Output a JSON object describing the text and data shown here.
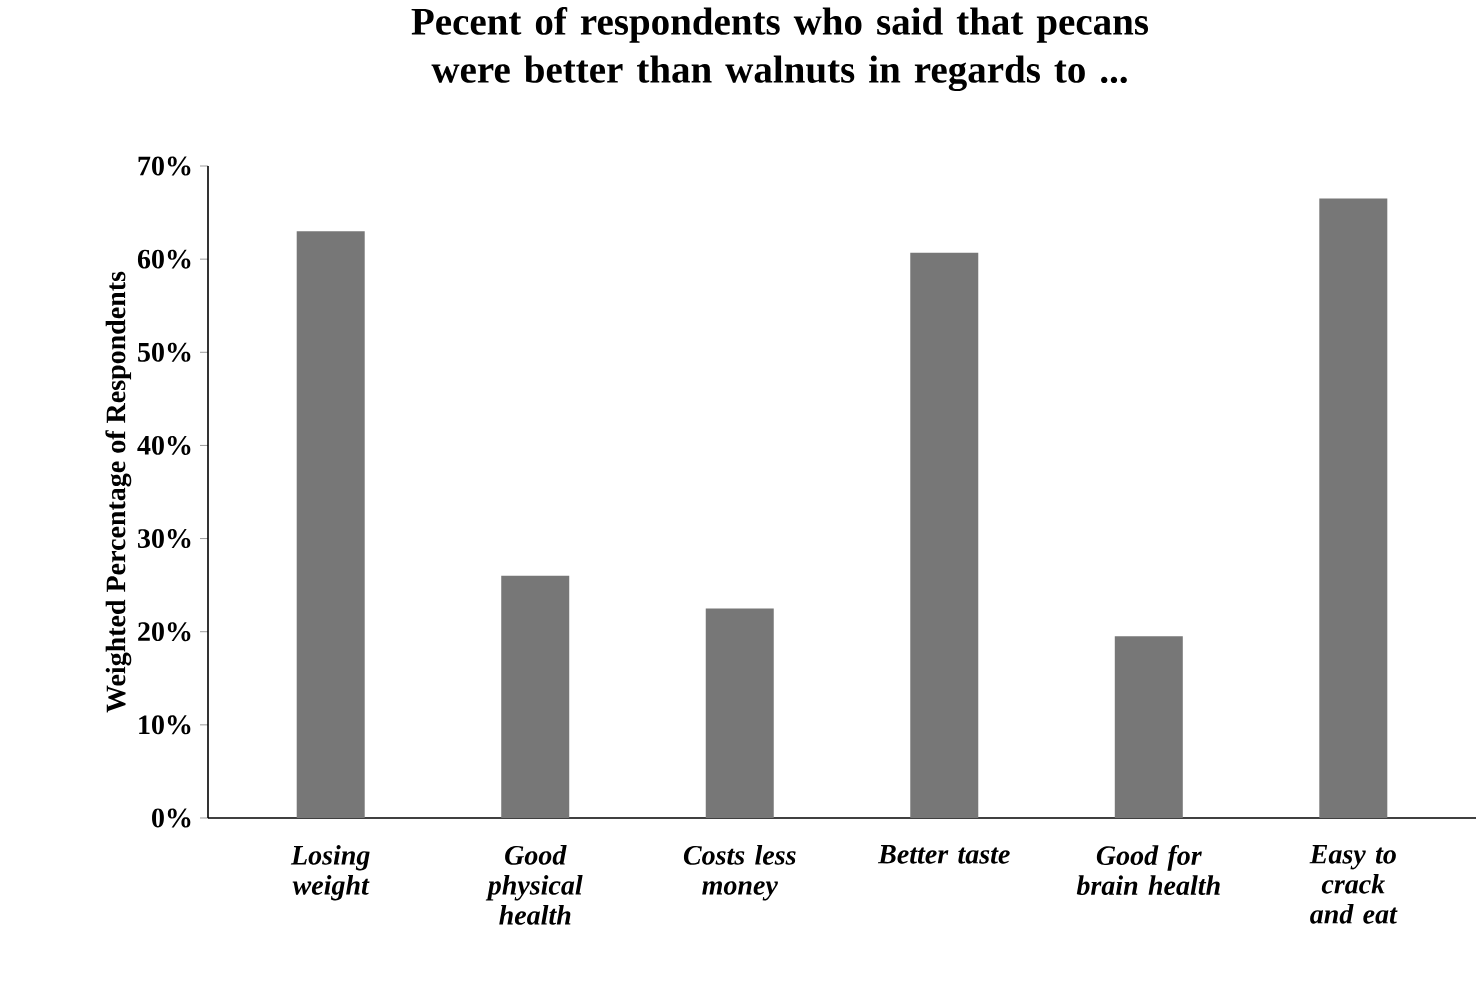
{
  "chart_data": {
    "type": "bar",
    "title": "Pecent of respondents who said that pecans were better than walnuts in regards to ...",
    "ylabel": "Weighted Percentage of Respondents",
    "categories": [
      "Losing weight",
      "Good physical health",
      "Costs less money",
      "Better taste",
      "Good for brain health",
      "Easy to crack and eat"
    ],
    "values": [
      63,
      26,
      22.5,
      60.7,
      19.5,
      66.5
    ],
    "color": "#777777",
    "ylim": [
      0,
      70
    ],
    "yticks": [
      {
        "value": 0,
        "label": "0%"
      },
      {
        "value": 10,
        "label": "10%"
      },
      {
        "value": 20,
        "label": "20%"
      },
      {
        "value": 30,
        "label": "30%"
      },
      {
        "value": 40,
        "label": "40%"
      },
      {
        "value": 50,
        "label": "50%"
      },
      {
        "value": 60,
        "label": "60%"
      },
      {
        "value": 70,
        "label": "70%"
      }
    ],
    "grid": false
  }
}
